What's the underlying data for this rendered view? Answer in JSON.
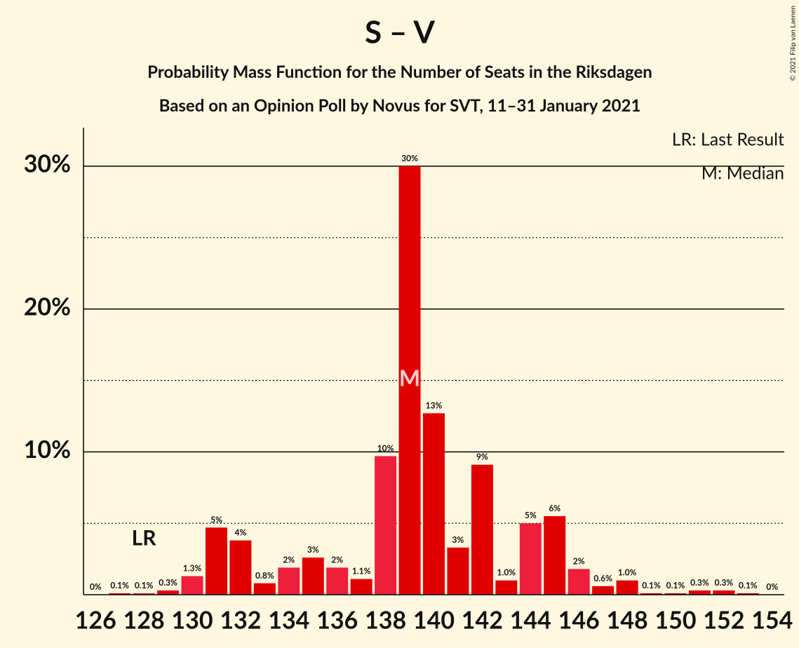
{
  "chart_data": {
    "type": "bar",
    "title": "S – V",
    "subtitle": "Probability Mass Function for the Number of Seats in the Riksdagen",
    "subtitle2": "Based on an Opinion Poll by Novus for SVT, 11–31 January 2021",
    "copyright": "© 2021 Filip van Laenen",
    "legend": [
      "LR: Last Result",
      "M: Median"
    ],
    "last_result": {
      "x": 128,
      "label": "LR"
    },
    "median": {
      "x": 139,
      "label": "M"
    },
    "x": [
      126,
      127,
      128,
      129,
      130,
      131,
      132,
      133,
      134,
      135,
      136,
      137,
      138,
      139,
      140,
      141,
      142,
      143,
      144,
      145,
      146,
      147,
      148,
      149,
      150,
      151,
      152,
      153,
      154
    ],
    "values": [
      0,
      0.1,
      0.1,
      0.3,
      1.3,
      4.7,
      3.8,
      0.8,
      1.9,
      2.6,
      1.9,
      1.1,
      9.7,
      30.0,
      12.7,
      3.3,
      9.1,
      1.0,
      5.0,
      5.5,
      1.8,
      0.6,
      1.0,
      0.1,
      0.1,
      0.3,
      0.3,
      0.1,
      0
    ],
    "value_labels": [
      "0%",
      "0.1%",
      "0.1%",
      "0.3%",
      "1.3%",
      "5%",
      "4%",
      "0.8%",
      "2%",
      "3%",
      "2%",
      "1.1%",
      "10%",
      "30%",
      "13%",
      "3%",
      "9%",
      "1.0%",
      "5%",
      "6%",
      "2%",
      "0.6%",
      "1.0%",
      "0.1%",
      "0.1%",
      "0.3%",
      "0.3%",
      "0.1%",
      "0%"
    ],
    "colors": [
      "#e0001a",
      "#e0001a",
      "#ee1f3a",
      "#e0001a",
      "#ee1f3a",
      "#e00000",
      "#e00000",
      "#e00000",
      "#ee1f3a",
      "#e00000",
      "#ee1f3a",
      "#e00000",
      "#ee1f3a",
      "#e00000",
      "#e00000",
      "#e00000",
      "#e00000",
      "#e00000",
      "#ee1f3a",
      "#e00000",
      "#ee1f3a",
      "#e00000",
      "#e00000",
      "#e00000",
      "#e00000",
      "#e00000",
      "#e00000",
      "#e00000",
      "#e00000"
    ],
    "xticks": [
      126,
      128,
      130,
      132,
      134,
      136,
      138,
      140,
      142,
      144,
      146,
      148,
      150,
      152,
      154
    ],
    "ylim": [
      0,
      32.7
    ],
    "yticks": [
      {
        "value": 10,
        "label": "10%"
      },
      {
        "value": 20,
        "label": "20%"
      },
      {
        "value": 30,
        "label": "30%"
      }
    ],
    "minor_yticks": [
      5,
      15,
      25
    ]
  }
}
